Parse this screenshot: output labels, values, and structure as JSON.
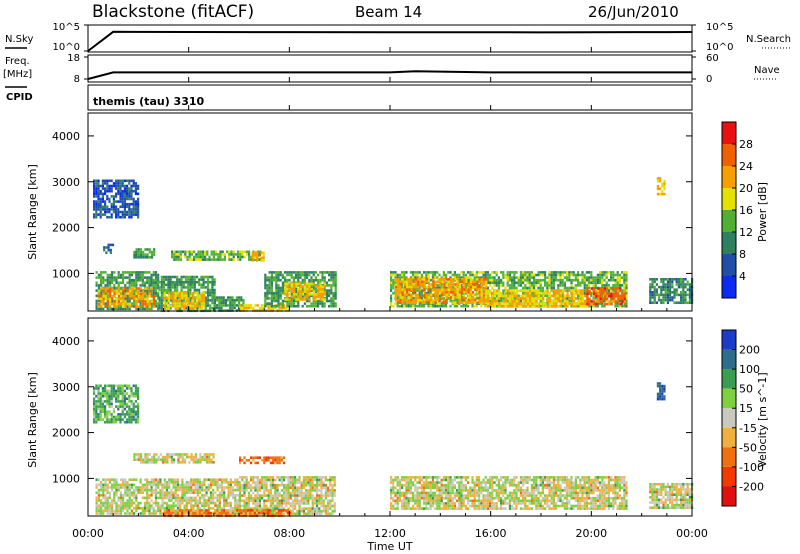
{
  "header": {
    "station": "Blackstone (fitACF)",
    "beam": "Beam 14",
    "date": "26/Jun/2010"
  },
  "strip_labels": {
    "nsky_label": "N.Sky",
    "nsky_top_tick": "10^5",
    "nsky_bottom_tick": "10^0",
    "nsearch_label": "N.Search",
    "nsearch_top_tick": "10^5",
    "nsearch_bottom_tick": "10^0",
    "freq_label": "Freq.",
    "freq_unit": "[MHz]",
    "freq_top_tick": "18",
    "freq_bottom_tick": "8",
    "nave_label": "Nave",
    "nave_top_tick": "60",
    "nave_bottom_tick": "0",
    "cpid_label": "CPID",
    "cpid_value": "themis (tau) 3310"
  },
  "colors": {
    "power_scale": [
      "#0b2bf0",
      "#1f4fa8",
      "#2e8060",
      "#4fb034",
      "#e5e000",
      "#f5a000",
      "#f06000",
      "#e81010"
    ],
    "velocity_scale": [
      "#1a3cc8",
      "#2e6e8c",
      "#3a9e50",
      "#7ed040",
      "#c8c8c0",
      "#f0b040",
      "#f07010",
      "#f03a00",
      "#e01010"
    ]
  },
  "chart_data": [
    {
      "type": "line",
      "panel": "N.Sky / N.Search",
      "x": [
        "00:00",
        "01:00",
        "04:00",
        "08:00",
        "12:00",
        "16:00",
        "18:00",
        "20:00",
        "23:00",
        "24:00"
      ],
      "series": [
        {
          "name": "N.Sky",
          "values": [
            1,
            10000,
            9000,
            8500,
            8000,
            8200,
            7500,
            8000,
            8500,
            9000
          ]
        }
      ],
      "ylim": [
        1,
        100000
      ]
    },
    {
      "type": "line",
      "panel": "Freq. / Nave",
      "x": [
        "00:00",
        "01:00",
        "04:00",
        "08:00",
        "12:00",
        "13:00",
        "16:00",
        "20:00",
        "24:00"
      ],
      "series": [
        {
          "name": "Freq.",
          "values": [
            8,
            11,
            11,
            11,
            11,
            11.5,
            11,
            11,
            11
          ]
        }
      ],
      "ylim": [
        8,
        18
      ]
    },
    {
      "type": "heatmap",
      "panel": "power",
      "ylabel": "Slant Range [km]",
      "colorbar_label": "Power [dB]",
      "yticks": [
        "1000",
        "2000",
        "3000",
        "4000"
      ],
      "colorbar_ticks": [
        "4",
        "8",
        "12",
        "16",
        "20",
        "24",
        "28"
      ],
      "ylim": [
        180,
        4500
      ],
      "xlim": [
        0,
        24
      ],
      "clim": [
        0,
        32
      ],
      "regions": [
        {
          "t0": 0.3,
          "t1": 2.8,
          "r0": 200,
          "r1": 1050,
          "v": 12
        },
        {
          "t0": 0.4,
          "t1": 2.6,
          "r0": 250,
          "r1": 700,
          "v": 22
        },
        {
          "t0": 2.8,
          "t1": 5.0,
          "r0": 200,
          "r1": 950,
          "v": 12
        },
        {
          "t0": 3.0,
          "t1": 4.6,
          "r0": 250,
          "r1": 600,
          "v": 20
        },
        {
          "t0": 5.0,
          "t1": 6.2,
          "r0": 200,
          "r1": 500,
          "v": 12
        },
        {
          "t0": 6.0,
          "t1": 8.0,
          "r0": 180,
          "r1": 330,
          "v": 20
        },
        {
          "t0": 7.0,
          "t1": 9.8,
          "r0": 300,
          "r1": 1050,
          "v": 12
        },
        {
          "t0": 7.8,
          "t1": 9.4,
          "r0": 450,
          "r1": 800,
          "v": 20
        },
        {
          "t0": 3.3,
          "t1": 6.8,
          "r0": 1300,
          "r1": 1500,
          "v": 14
        },
        {
          "t0": 0.6,
          "t1": 1.0,
          "r0": 1450,
          "r1": 1650,
          "v": 8
        },
        {
          "t0": 1.8,
          "t1": 2.6,
          "r0": 1350,
          "r1": 1550,
          "v": 12
        },
        {
          "t0": 6.5,
          "t1": 7.0,
          "r0": 1300,
          "r1": 1480,
          "v": 22
        },
        {
          "t0": 12.0,
          "t1": 21.4,
          "r0": 300,
          "r1": 1050,
          "v": 14
        },
        {
          "t0": 12.2,
          "t1": 15.8,
          "r0": 350,
          "r1": 900,
          "v": 22
        },
        {
          "t0": 15.6,
          "t1": 19.8,
          "r0": 300,
          "r1": 650,
          "v": 20
        },
        {
          "t0": 19.8,
          "t1": 21.3,
          "r0": 350,
          "r1": 700,
          "v": 26
        },
        {
          "t0": 22.3,
          "t1": 24.0,
          "r0": 350,
          "r1": 900,
          "v": 10
        },
        {
          "t0": 0.2,
          "t1": 2.0,
          "r0": 2200,
          "r1": 3050,
          "v": 6
        },
        {
          "t0": 22.6,
          "t1": 22.9,
          "r0": 2750,
          "r1": 3100,
          "v": 20
        }
      ]
    },
    {
      "type": "heatmap",
      "panel": "velocity",
      "ylabel": "Slant Range [km]",
      "xlabel": "Time UT",
      "colorbar_label": "Velocity [m s^-1]",
      "yticks": [
        "1000",
        "2000",
        "3000",
        "4000"
      ],
      "colorbar_ticks": [
        "200",
        "100",
        "50",
        "15",
        "-15",
        "-50",
        "-100",
        "-200"
      ],
      "xticks": [
        "00:00",
        "04:00",
        "08:00",
        "12:00",
        "16:00",
        "20:00",
        "00:00"
      ],
      "ylim": [
        180,
        4500
      ],
      "xlim": [
        0,
        24
      ],
      "clim": [
        -250,
        250
      ],
      "regions": [
        {
          "t0": 0.3,
          "t1": 6.0,
          "r0": 220,
          "r1": 1000,
          "v": 0
        },
        {
          "t0": 6.0,
          "t1": 9.8,
          "r0": 200,
          "r1": 1050,
          "v": 0
        },
        {
          "t0": 3.0,
          "t1": 8.0,
          "r0": 180,
          "r1": 330,
          "v": -80
        },
        {
          "t0": 6.0,
          "t1": 7.8,
          "r0": 1330,
          "r1": 1480,
          "v": -90
        },
        {
          "t0": 1.8,
          "t1": 5.0,
          "r0": 1350,
          "r1": 1550,
          "v": 0
        },
        {
          "t0": 12.0,
          "t1": 21.4,
          "r0": 350,
          "r1": 1050,
          "v": 0
        },
        {
          "t0": 22.3,
          "t1": 24.0,
          "r0": 350,
          "r1": 900,
          "v": 0
        },
        {
          "t0": 0.2,
          "t1": 2.0,
          "r0": 2200,
          "r1": 3050,
          "v": 60
        },
        {
          "t0": 22.6,
          "t1": 22.9,
          "r0": 2750,
          "r1": 3100,
          "v": 180
        }
      ]
    }
  ]
}
